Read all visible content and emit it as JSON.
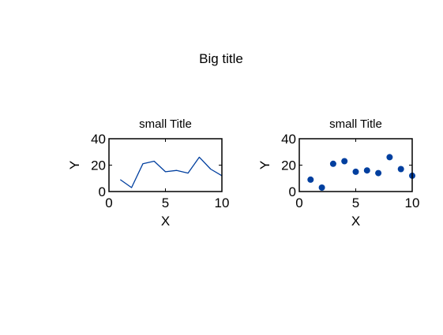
{
  "figure": {
    "suptitle": "Big title"
  },
  "chart_data": [
    {
      "type": "line",
      "title": "small Title",
      "xlabel": "X",
      "ylabel": "Y",
      "xlim": [
        0,
        10
      ],
      "ylim": [
        0,
        40
      ],
      "xticks": [
        0,
        5,
        10
      ],
      "yticks": [
        0,
        20,
        40
      ],
      "grid": false,
      "series": [
        {
          "color": "#003f9f",
          "x": [
            1,
            2,
            3,
            4,
            5,
            6,
            7,
            8,
            9,
            10
          ],
          "y": [
            9,
            3,
            21,
            23,
            15,
            16,
            14,
            26,
            17,
            12
          ]
        }
      ]
    },
    {
      "type": "scatter",
      "title": "small Title",
      "xlabel": "X",
      "ylabel": "Y",
      "xlim": [
        0,
        10
      ],
      "ylim": [
        0,
        40
      ],
      "xticks": [
        0,
        5,
        10
      ],
      "yticks": [
        0,
        20,
        40
      ],
      "grid": false,
      "series": [
        {
          "color": "#003f9f",
          "x": [
            1,
            2,
            3,
            4,
            5,
            6,
            7,
            8,
            9,
            10
          ],
          "y": [
            9,
            3,
            21,
            23,
            15,
            16,
            14,
            26,
            17,
            12
          ]
        }
      ]
    }
  ]
}
